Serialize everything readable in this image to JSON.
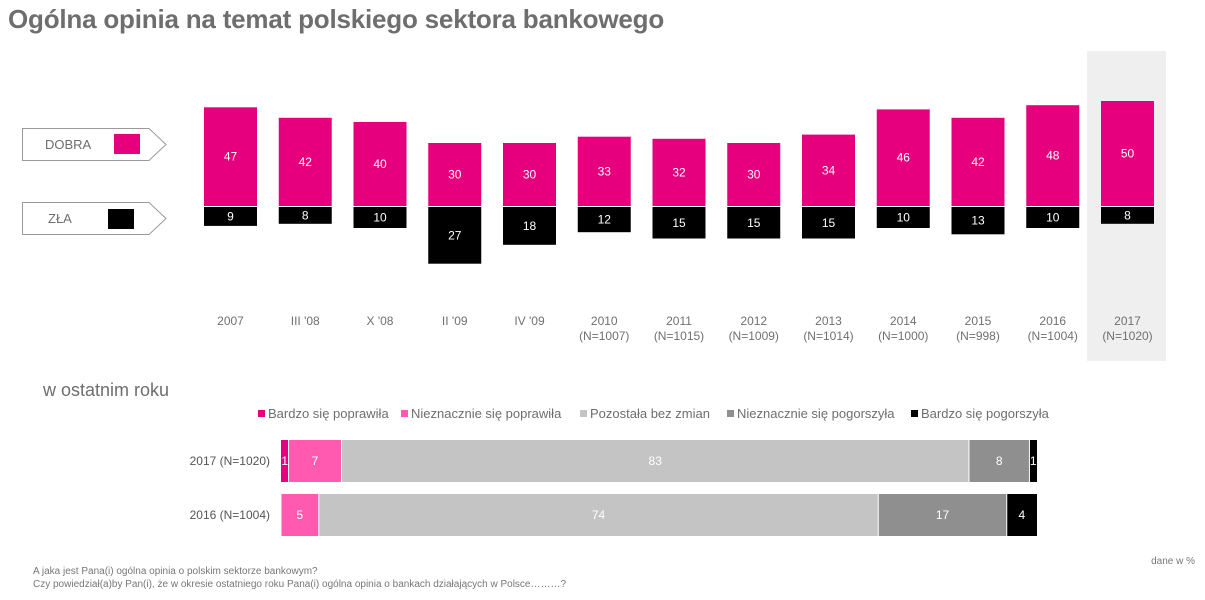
{
  "title": "Ogólna opinia na temat polskiego sektora bankowego",
  "colors": {
    "good": "#e6007e",
    "bad": "#000000",
    "very_improved": "#e6007e",
    "slightly_improved": "#ff5aaf",
    "unchanged": "#c4c4c4",
    "slightly_worse": "#8f8f8f",
    "very_worse": "#000000",
    "highlight": "#efefef"
  },
  "legend": {
    "good_label": "DOBRA",
    "bad_label": "ZŁA"
  },
  "chart_data": [
    {
      "type": "bar",
      "subtype": "diverging-vertical",
      "title": "Ogólna opinia na temat polskiego sektora bankowego",
      "categories": [
        {
          "line1": "2007",
          "line2": ""
        },
        {
          "line1": "III '08",
          "line2": ""
        },
        {
          "line1": "X '08",
          "line2": ""
        },
        {
          "line1": "II '09",
          "line2": ""
        },
        {
          "line1": "IV '09",
          "line2": ""
        },
        {
          "line1": "2010",
          "line2": "(N=1007)"
        },
        {
          "line1": "2011",
          "line2": "(N=1015)"
        },
        {
          "line1": "2012",
          "line2": "(N=1009)"
        },
        {
          "line1": "2013",
          "line2": "(N=1014)"
        },
        {
          "line1": "2014",
          "line2": "(N=1000)"
        },
        {
          "line1": "2015",
          "line2": "(N=998)"
        },
        {
          "line1": "2016",
          "line2": "(N=1004)"
        },
        {
          "line1": "2017",
          "line2": "(N=1020)"
        }
      ],
      "series": [
        {
          "name": "DOBRA",
          "values": [
            47,
            42,
            40,
            30,
            30,
            33,
            32,
            30,
            34,
            46,
            42,
            48,
            50
          ]
        },
        {
          "name": "ZŁA",
          "values": [
            9,
            8,
            10,
            27,
            18,
            12,
            15,
            15,
            15,
            10,
            13,
            10,
            8
          ]
        }
      ],
      "highlighted_category": "2017"
    },
    {
      "type": "bar",
      "subtype": "stacked-horizontal-100",
      "title": "w ostatnim roku",
      "categories": [
        "2017 (N=1020)",
        "2016 (N=1004)"
      ],
      "series": [
        {
          "name": "Bardzo się poprawiła",
          "values": [
            1,
            0
          ]
        },
        {
          "name": "Nieznacznie się poprawiła",
          "values": [
            7,
            5
          ]
        },
        {
          "name": "Pozostała bez zmian",
          "values": [
            83,
            74
          ]
        },
        {
          "name": "Nieznacznie się pogorszyła",
          "values": [
            8,
            17
          ]
        },
        {
          "name": "Bardzo się pogorszyła",
          "values": [
            1,
            4
          ]
        }
      ]
    }
  ],
  "footnotes": {
    "line1": "A jaka jest Pana(i) ogólna opinia o polskim sektorze bankowym?",
    "line2": "Czy powiedział(a)by Pan(i), że w okresie ostatniego roku Pana(i) ogólna opinia o bankach działających w Polsce………?",
    "unit": "dane w %"
  }
}
